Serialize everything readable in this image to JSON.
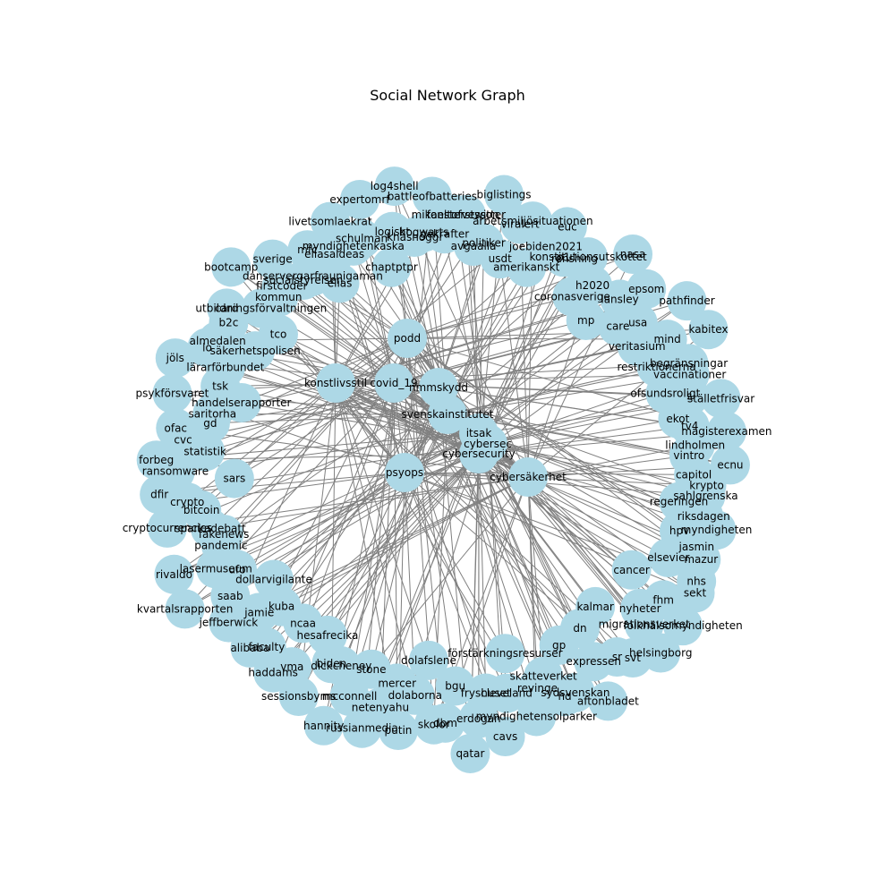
{
  "title": "Social Network Graph",
  "style": {
    "node_color": "#add8e6",
    "edge_color": "#808080",
    "label_color": "#000000"
  },
  "graph": {
    "hub_labels": [
      "podd",
      "konstlivsstil",
      "covid_19",
      "nmmskydd",
      "svenskainstitutet",
      "cybersec",
      "cybersecurity",
      "cybersäkerhet",
      "psyops",
      "itsak"
    ],
    "ring_labels": [
      "fakenews",
      "sparkadebatt",
      "cryptocurrencies",
      "bitcoin",
      "crypto",
      "dfir",
      "sars",
      "ransomware",
      "forbeg",
      "statistik",
      "cvc",
      "ofac",
      "gd",
      "saritorha",
      "psykförsvaret",
      "handelserapporter",
      "tsk",
      "jöls",
      "lärarförbundet",
      "lo",
      "almedalen",
      "säkerhetspolisen",
      "b2c",
      "card",
      "tco",
      "utbildningsförvaltningen",
      "bootcamp",
      "kommun",
      "firstcoder",
      "sverige",
      "socialstyrelsen",
      "danservergarfraunigaman",
      "mfc",
      "elias",
      "eliasaldeas",
      "livetsomlaekrat",
      "myndighetenkaska",
      "schulman",
      "expertomrf",
      "chaptptpr",
      "logiskt",
      "log4shell",
      "khashoggi",
      "hogwarts",
      "battleofbatteries",
      "gekrafter",
      "mikaeltofvesson",
      "fonsterstwitter",
      "avgaalla",
      "politiker",
      "biglistings",
      "usdt",
      "viralert",
      "arbetsmiljösituationen",
      "amerikanskt",
      "joebiden2021",
      "euc",
      "p1",
      "renshing",
      "konstitutionsutskottet",
      "coronasverige",
      "h2020",
      "nasa",
      "mp",
      "lansley",
      "epsom",
      "care",
      "usa",
      "pathfinder",
      "veritasium",
      "mind",
      "kabitex",
      "restriktionerna",
      "begränsningar",
      "vaccinationer",
      "ofsundsroligt",
      "s",
      "ställetfrisvar",
      "ekot",
      "tv4",
      "magisterexamen",
      "lindholmen",
      "vintro",
      "ecnu",
      "capitol",
      "krypto",
      "sahlgrenska",
      "regeringen",
      "riksdagen",
      "myndigheten",
      "hpv",
      "jasmin",
      "mazur",
      "elsevier",
      "nhs",
      "sekt",
      "cancer",
      "fhm",
      "folkhälsomyndigheten",
      "nyheter",
      "migrationsverket",
      "helsingborg",
      "kalmar",
      "svt",
      "sr",
      "dn",
      "expressen",
      "aftonbladet",
      "gp",
      "sydsvenskan",
      "hd",
      "skatteverket",
      "revinge",
      "myndighetensolparker",
      "förstärkningsresurser",
      "cleveland",
      "cavs",
      "fryshuset",
      "erdogan",
      "qatar",
      "bgu",
      "dbm",
      "skolor",
      "dolafslene",
      "dolaborna",
      "putin",
      "mercer",
      "netenyahu",
      "russianmedia",
      "stone",
      "mcconnell",
      "hannity",
      "dickcheney",
      "biden",
      "sessionsbyms",
      "hesafrecika",
      "vma",
      "haddams",
      "ncaa",
      "faculty",
      "alibaba",
      "kuba",
      "jamie",
      "jeffberwick",
      "dollarvigilante",
      "saab",
      "kvartalsrapporten",
      "ufo",
      "lasermuseum",
      "rivaldo",
      "pandemic"
    ]
  }
}
